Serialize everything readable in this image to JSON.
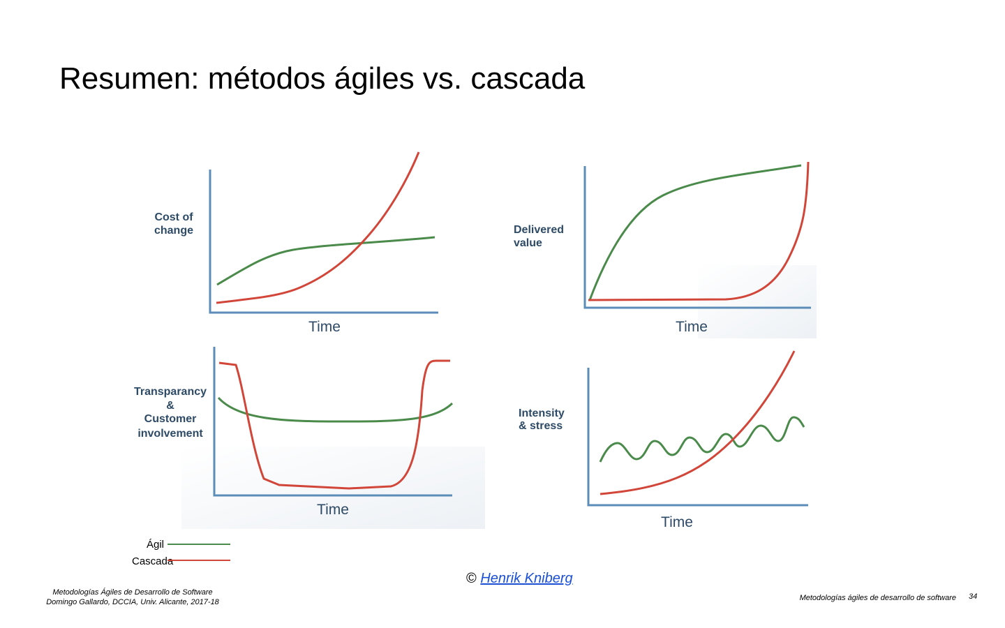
{
  "title": "Resumen: métodos ágiles vs. cascada",
  "panels": [
    {
      "y_label": [
        "Cost of",
        "change"
      ],
      "x_label": "Time"
    },
    {
      "y_label": [
        "Delivered",
        "value"
      ],
      "x_label": "Time"
    },
    {
      "y_label": [
        "Transparancy",
        "&",
        "Customer",
        "involvement"
      ],
      "x_label": "Time"
    },
    {
      "y_label": [
        "Intensity",
        "& stress"
      ],
      "x_label": "Time"
    }
  ],
  "legend": [
    {
      "name": "Ágil",
      "color": "#4a8a4a"
    },
    {
      "name": "Cascada",
      "color": "#d2463a"
    }
  ],
  "credit": {
    "symbol": "©",
    "link": "Henrik Kniberg"
  },
  "footer": {
    "left": [
      "Metodologías Ágiles de Desarrollo de Software",
      "Domingo Gallardo, DCCIA, Univ. Alicante, 2017-18"
    ],
    "right": "Metodologías ágiles de desarrollo de software",
    "page": "34"
  }
}
